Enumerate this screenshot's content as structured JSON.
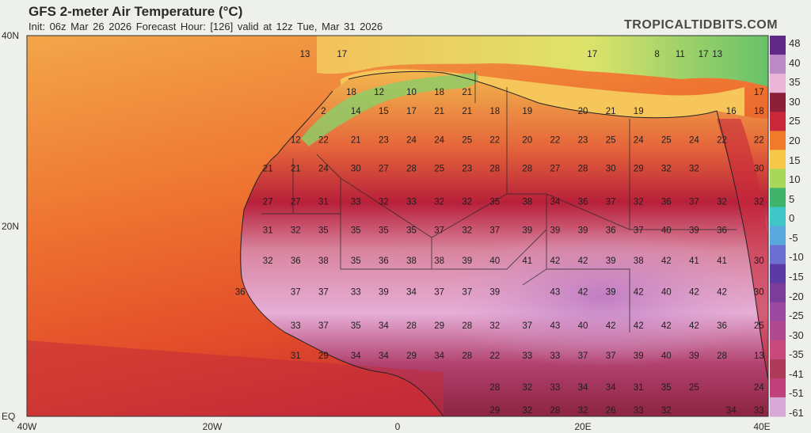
{
  "header": {
    "title": "GFS 2-meter Air Temperature (°C)",
    "subtitle": "Init: 06z Mar 26 2026   Forecast Hour: [126]   valid at 12z Tue, Mar 31 2026",
    "brand": "TROPICALTIDBITS.COM"
  },
  "axes": {
    "lat_labels": [
      "40N",
      "20N",
      "EQ"
    ],
    "lon_labels": [
      "40W",
      "20W",
      "0",
      "20E",
      "40E"
    ]
  },
  "colorbar": {
    "labels": [
      "48",
      "40",
      "35",
      "30",
      "25",
      "20",
      "15",
      "10",
      "5",
      "0",
      "-5",
      "-10",
      "-15",
      "-20",
      "-25",
      "-30",
      "-35",
      "-41",
      "-51",
      "-61"
    ],
    "colors": [
      "#5e2a86",
      "#b98ac4",
      "#e9b6d8",
      "#8c1f3a",
      "#c8283a",
      "#f07a2c",
      "#f5c84a",
      "#a7d85a",
      "#3fb36a",
      "#3fc6c6",
      "#5aa8de",
      "#6b6fcf",
      "#5b3aa6",
      "#7b3c9a",
      "#9b4aa0",
      "#b04a8e",
      "#c94a7a",
      "#b03a5a",
      "#c0407a",
      "#d8a8d8"
    ]
  },
  "map_labels": [
    {
      "lat": 38,
      "lon": -10,
      "t": "13"
    },
    {
      "lat": 38,
      "lon": -6,
      "t": "17"
    },
    {
      "lat": 38,
      "lon": 21,
      "t": "17"
    },
    {
      "lat": 38,
      "lon": 28,
      "t": "8"
    },
    {
      "lat": 38,
      "lon": 30.5,
      "t": "11"
    },
    {
      "lat": 38,
      "lon": 33,
      "t": "17"
    },
    {
      "lat": 38,
      "lon": 34.5,
      "t": "13"
    },
    {
      "lat": 34,
      "lon": -5,
      "t": "18"
    },
    {
      "lat": 34,
      "lon": -2,
      "t": "12"
    },
    {
      "lat": 34,
      "lon": 1.5,
      "t": "10"
    },
    {
      "lat": 34,
      "lon": 4.5,
      "t": "18"
    },
    {
      "lat": 34,
      "lon": 7.5,
      "t": "21"
    },
    {
      "lat": 34,
      "lon": 39,
      "t": "17"
    },
    {
      "lat": 32,
      "lon": -8,
      "t": "2"
    },
    {
      "lat": 32,
      "lon": -4.5,
      "t": "14"
    },
    {
      "lat": 32,
      "lon": -1.5,
      "t": "15"
    },
    {
      "lat": 32,
      "lon": 1.5,
      "t": "17"
    },
    {
      "lat": 32,
      "lon": 4.5,
      "t": "21"
    },
    {
      "lat": 32,
      "lon": 7.5,
      "t": "21"
    },
    {
      "lat": 32,
      "lon": 10.5,
      "t": "18"
    },
    {
      "lat": 32,
      "lon": 14,
      "t": "19"
    },
    {
      "lat": 32,
      "lon": 20,
      "t": "20"
    },
    {
      "lat": 32,
      "lon": 23,
      "t": "21"
    },
    {
      "lat": 32,
      "lon": 26,
      "t": "19"
    },
    {
      "lat": 32,
      "lon": 36,
      "t": "16"
    },
    {
      "lat": 32,
      "lon": 39,
      "t": "18"
    },
    {
      "lat": 29,
      "lon": -11,
      "t": "12"
    },
    {
      "lat": 29,
      "lon": -8,
      "t": "22"
    },
    {
      "lat": 29,
      "lon": -4.5,
      "t": "21"
    },
    {
      "lat": 29,
      "lon": -1.5,
      "t": "23"
    },
    {
      "lat": 29,
      "lon": 1.5,
      "t": "24"
    },
    {
      "lat": 29,
      "lon": 4.5,
      "t": "24"
    },
    {
      "lat": 29,
      "lon": 7.5,
      "t": "25"
    },
    {
      "lat": 29,
      "lon": 10.5,
      "t": "22"
    },
    {
      "lat": 29,
      "lon": 14,
      "t": "20"
    },
    {
      "lat": 29,
      "lon": 17,
      "t": "22"
    },
    {
      "lat": 29,
      "lon": 20,
      "t": "23"
    },
    {
      "lat": 29,
      "lon": 23,
      "t": "25"
    },
    {
      "lat": 29,
      "lon": 26,
      "t": "24"
    },
    {
      "lat": 29,
      "lon": 29,
      "t": "25"
    },
    {
      "lat": 29,
      "lon": 32,
      "t": "24"
    },
    {
      "lat": 29,
      "lon": 35,
      "t": "22"
    },
    {
      "lat": 29,
      "lon": 39,
      "t": "22"
    },
    {
      "lat": 26,
      "lon": -14,
      "t": "21"
    },
    {
      "lat": 26,
      "lon": -11,
      "t": "21"
    },
    {
      "lat": 26,
      "lon": -8,
      "t": "24"
    },
    {
      "lat": 26,
      "lon": -4.5,
      "t": "30"
    },
    {
      "lat": 26,
      "lon": -1.5,
      "t": "27"
    },
    {
      "lat": 26,
      "lon": 1.5,
      "t": "28"
    },
    {
      "lat": 26,
      "lon": 4.5,
      "t": "25"
    },
    {
      "lat": 26,
      "lon": 7.5,
      "t": "23"
    },
    {
      "lat": 26,
      "lon": 10.5,
      "t": "28"
    },
    {
      "lat": 26,
      "lon": 14,
      "t": "28"
    },
    {
      "lat": 26,
      "lon": 17,
      "t": "27"
    },
    {
      "lat": 26,
      "lon": 20,
      "t": "28"
    },
    {
      "lat": 26,
      "lon": 23,
      "t": "30"
    },
    {
      "lat": 26,
      "lon": 26,
      "t": "29"
    },
    {
      "lat": 26,
      "lon": 29,
      "t": "32"
    },
    {
      "lat": 26,
      "lon": 32,
      "t": "32"
    },
    {
      "lat": 26,
      "lon": 39,
      "t": "30"
    },
    {
      "lat": 22.5,
      "lon": -14,
      "t": "27"
    },
    {
      "lat": 22.5,
      "lon": -11,
      "t": "27"
    },
    {
      "lat": 22.5,
      "lon": -8,
      "t": "31"
    },
    {
      "lat": 22.5,
      "lon": -4.5,
      "t": "33"
    },
    {
      "lat": 22.5,
      "lon": -1.5,
      "t": "32"
    },
    {
      "lat": 22.5,
      "lon": 1.5,
      "t": "33"
    },
    {
      "lat": 22.5,
      "lon": 4.5,
      "t": "32"
    },
    {
      "lat": 22.5,
      "lon": 7.5,
      "t": "32"
    },
    {
      "lat": 22.5,
      "lon": 10.5,
      "t": "35"
    },
    {
      "lat": 22.5,
      "lon": 14,
      "t": "38"
    },
    {
      "lat": 22.5,
      "lon": 17,
      "t": "34"
    },
    {
      "lat": 22.5,
      "lon": 20,
      "t": "36"
    },
    {
      "lat": 22.5,
      "lon": 23,
      "t": "37"
    },
    {
      "lat": 22.5,
      "lon": 26,
      "t": "32"
    },
    {
      "lat": 22.5,
      "lon": 29,
      "t": "36"
    },
    {
      "lat": 22.5,
      "lon": 32,
      "t": "37"
    },
    {
      "lat": 22.5,
      "lon": 35,
      "t": "32"
    },
    {
      "lat": 22.5,
      "lon": 39,
      "t": "32"
    },
    {
      "lat": 19.5,
      "lon": -14,
      "t": "31"
    },
    {
      "lat": 19.5,
      "lon": -11,
      "t": "32"
    },
    {
      "lat": 19.5,
      "lon": -8,
      "t": "35"
    },
    {
      "lat": 19.5,
      "lon": -4.5,
      "t": "35"
    },
    {
      "lat": 19.5,
      "lon": -1.5,
      "t": "35"
    },
    {
      "lat": 19.5,
      "lon": 1.5,
      "t": "35"
    },
    {
      "lat": 19.5,
      "lon": 4.5,
      "t": "37"
    },
    {
      "lat": 19.5,
      "lon": 7.5,
      "t": "32"
    },
    {
      "lat": 19.5,
      "lon": 10.5,
      "t": "37"
    },
    {
      "lat": 19.5,
      "lon": 14,
      "t": "39"
    },
    {
      "lat": 19.5,
      "lon": 17,
      "t": "39"
    },
    {
      "lat": 19.5,
      "lon": 20,
      "t": "39"
    },
    {
      "lat": 19.5,
      "lon": 23,
      "t": "36"
    },
    {
      "lat": 19.5,
      "lon": 26,
      "t": "37"
    },
    {
      "lat": 19.5,
      "lon": 29,
      "t": "40"
    },
    {
      "lat": 19.5,
      "lon": 32,
      "t": "39"
    },
    {
      "lat": 19.5,
      "lon": 35,
      "t": "36"
    },
    {
      "lat": 16.3,
      "lon": -14,
      "t": "32"
    },
    {
      "lat": 16.3,
      "lon": -11,
      "t": "36"
    },
    {
      "lat": 16.3,
      "lon": -8,
      "t": "38"
    },
    {
      "lat": 16.3,
      "lon": -4.5,
      "t": "35"
    },
    {
      "lat": 16.3,
      "lon": -1.5,
      "t": "36"
    },
    {
      "lat": 16.3,
      "lon": 1.5,
      "t": "38"
    },
    {
      "lat": 16.3,
      "lon": 4.5,
      "t": "38"
    },
    {
      "lat": 16.3,
      "lon": 7.5,
      "t": "39"
    },
    {
      "lat": 16.3,
      "lon": 10.5,
      "t": "40"
    },
    {
      "lat": 16.3,
      "lon": 14,
      "t": "41"
    },
    {
      "lat": 16.3,
      "lon": 17,
      "t": "42"
    },
    {
      "lat": 16.3,
      "lon": 20,
      "t": "42"
    },
    {
      "lat": 16.3,
      "lon": 23,
      "t": "39"
    },
    {
      "lat": 16.3,
      "lon": 26,
      "t": "38"
    },
    {
      "lat": 16.3,
      "lon": 29,
      "t": "42"
    },
    {
      "lat": 16.3,
      "lon": 32,
      "t": "41"
    },
    {
      "lat": 16.3,
      "lon": 35,
      "t": "41"
    },
    {
      "lat": 16.3,
      "lon": 39,
      "t": "30"
    },
    {
      "lat": 13,
      "lon": -17,
      "t": "36"
    },
    {
      "lat": 13,
      "lon": -11,
      "t": "37"
    },
    {
      "lat": 13,
      "lon": -8,
      "t": "37"
    },
    {
      "lat": 13,
      "lon": -4.5,
      "t": "33"
    },
    {
      "lat": 13,
      "lon": -1.5,
      "t": "39"
    },
    {
      "lat": 13,
      "lon": 1.5,
      "t": "34"
    },
    {
      "lat": 13,
      "lon": 4.5,
      "t": "37"
    },
    {
      "lat": 13,
      "lon": 7.5,
      "t": "37"
    },
    {
      "lat": 13,
      "lon": 10.5,
      "t": "39"
    },
    {
      "lat": 13,
      "lon": 17,
      "t": "43"
    },
    {
      "lat": 13,
      "lon": 20,
      "t": "42"
    },
    {
      "lat": 13,
      "lon": 23,
      "t": "39"
    },
    {
      "lat": 13,
      "lon": 26,
      "t": "42"
    },
    {
      "lat": 13,
      "lon": 29,
      "t": "40"
    },
    {
      "lat": 13,
      "lon": 32,
      "t": "42"
    },
    {
      "lat": 13,
      "lon": 35,
      "t": "42"
    },
    {
      "lat": 13,
      "lon": 39,
      "t": "30"
    },
    {
      "lat": 9.5,
      "lon": -11,
      "t": "33"
    },
    {
      "lat": 9.5,
      "lon": -8,
      "t": "37"
    },
    {
      "lat": 9.5,
      "lon": -4.5,
      "t": "35"
    },
    {
      "lat": 9.5,
      "lon": -1.5,
      "t": "34"
    },
    {
      "lat": 9.5,
      "lon": 1.5,
      "t": "28"
    },
    {
      "lat": 9.5,
      "lon": 4.5,
      "t": "29"
    },
    {
      "lat": 9.5,
      "lon": 7.5,
      "t": "28"
    },
    {
      "lat": 9.5,
      "lon": 10.5,
      "t": "32"
    },
    {
      "lat": 9.5,
      "lon": 14,
      "t": "37"
    },
    {
      "lat": 9.5,
      "lon": 17,
      "t": "43"
    },
    {
      "lat": 9.5,
      "lon": 20,
      "t": "40"
    },
    {
      "lat": 9.5,
      "lon": 23,
      "t": "42"
    },
    {
      "lat": 9.5,
      "lon": 26,
      "t": "42"
    },
    {
      "lat": 9.5,
      "lon": 29,
      "t": "42"
    },
    {
      "lat": 9.5,
      "lon": 32,
      "t": "42"
    },
    {
      "lat": 9.5,
      "lon": 35,
      "t": "36"
    },
    {
      "lat": 9.5,
      "lon": 39,
      "t": "25"
    },
    {
      "lat": 6.3,
      "lon": -11,
      "t": "31"
    },
    {
      "lat": 6.3,
      "lon": -8,
      "t": "29"
    },
    {
      "lat": 6.3,
      "lon": -4.5,
      "t": "34"
    },
    {
      "lat": 6.3,
      "lon": -1.5,
      "t": "34"
    },
    {
      "lat": 6.3,
      "lon": 1.5,
      "t": "29"
    },
    {
      "lat": 6.3,
      "lon": 4.5,
      "t": "34"
    },
    {
      "lat": 6.3,
      "lon": 7.5,
      "t": "28"
    },
    {
      "lat": 6.3,
      "lon": 10.5,
      "t": "22"
    },
    {
      "lat": 6.3,
      "lon": 14,
      "t": "33"
    },
    {
      "lat": 6.3,
      "lon": 17,
      "t": "33"
    },
    {
      "lat": 6.3,
      "lon": 20,
      "t": "37"
    },
    {
      "lat": 6.3,
      "lon": 23,
      "t": "37"
    },
    {
      "lat": 6.3,
      "lon": 26,
      "t": "39"
    },
    {
      "lat": 6.3,
      "lon": 29,
      "t": "40"
    },
    {
      "lat": 6.3,
      "lon": 32,
      "t": "39"
    },
    {
      "lat": 6.3,
      "lon": 35,
      "t": "28"
    },
    {
      "lat": 6.3,
      "lon": 39,
      "t": "13"
    },
    {
      "lat": 3,
      "lon": 10.5,
      "t": "28"
    },
    {
      "lat": 3,
      "lon": 14,
      "t": "32"
    },
    {
      "lat": 3,
      "lon": 17,
      "t": "33"
    },
    {
      "lat": 3,
      "lon": 20,
      "t": "34"
    },
    {
      "lat": 3,
      "lon": 23,
      "t": "34"
    },
    {
      "lat": 3,
      "lon": 26,
      "t": "31"
    },
    {
      "lat": 3,
      "lon": 29,
      "t": "35"
    },
    {
      "lat": 3,
      "lon": 32,
      "t": "25"
    },
    {
      "lat": 3,
      "lon": 39,
      "t": "24"
    },
    {
      "lat": 0.6,
      "lon": 10.5,
      "t": "29"
    },
    {
      "lat": 0.6,
      "lon": 14,
      "t": "32"
    },
    {
      "lat": 0.6,
      "lon": 17,
      "t": "28"
    },
    {
      "lat": 0.6,
      "lon": 20,
      "t": "32"
    },
    {
      "lat": 0.6,
      "lon": 23,
      "t": "26"
    },
    {
      "lat": 0.6,
      "lon": 26,
      "t": "33"
    },
    {
      "lat": 0.6,
      "lon": 29,
      "t": "32"
    },
    {
      "lat": 0.6,
      "lon": 36,
      "t": "34"
    },
    {
      "lat": 0.6,
      "lon": 39,
      "t": "33"
    }
  ]
}
